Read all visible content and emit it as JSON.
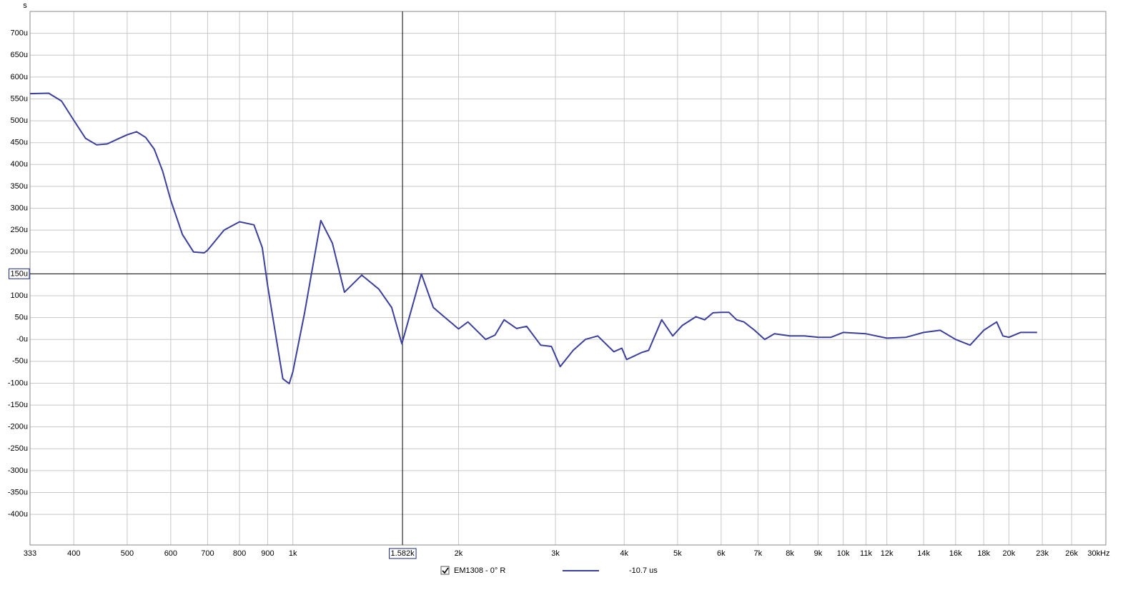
{
  "chart_data": {
    "type": "line",
    "y_axis_unit": "s",
    "x_scale": "log",
    "grid": true,
    "xlim": [
      333,
      30000
    ],
    "ylim": [
      -470,
      750
    ],
    "xticks": [
      333,
      400,
      500,
      600,
      700,
      800,
      900,
      {
        "value": 1000,
        "label": "1k"
      },
      {
        "value": 2000,
        "label": "2k"
      },
      {
        "value": 3000,
        "label": "3k"
      },
      {
        "value": 4000,
        "label": "4k"
      },
      {
        "value": 5000,
        "label": "5k"
      },
      {
        "value": 6000,
        "label": "6k"
      },
      {
        "value": 7000,
        "label": "7k"
      },
      {
        "value": 8000,
        "label": "8k"
      },
      {
        "value": 9000,
        "label": "9k"
      },
      {
        "value": 10000,
        "label": "10k"
      },
      {
        "value": 11000,
        "label": "11k"
      },
      {
        "value": 12000,
        "label": "12k"
      },
      {
        "value": 14000,
        "label": "14k"
      },
      {
        "value": 16000,
        "label": "16k"
      },
      {
        "value": 18000,
        "label": "18k"
      },
      {
        "value": 20000,
        "label": "20k"
      },
      {
        "value": 23000,
        "label": "23k"
      },
      {
        "value": 26000,
        "label": "26k"
      },
      {
        "value": 30000,
        "label": "30kHz"
      }
    ],
    "yticks": [
      {
        "value": 700,
        "label": "700u"
      },
      {
        "value": 650,
        "label": "650u"
      },
      {
        "value": 600,
        "label": "600u"
      },
      {
        "value": 550,
        "label": "550u"
      },
      {
        "value": 500,
        "label": "500u"
      },
      {
        "value": 450,
        "label": "450u"
      },
      {
        "value": 400,
        "label": "400u"
      },
      {
        "value": 350,
        "label": "350u"
      },
      {
        "value": 300,
        "label": "300u"
      },
      {
        "value": 250,
        "label": "250u"
      },
      {
        "value": 200,
        "label": "200u"
      },
      {
        "value": 100,
        "label": "100u"
      },
      {
        "value": 50,
        "label": "50u"
      },
      {
        "value": 0,
        "label": "-0u"
      },
      {
        "value": -50,
        "label": "-50u"
      },
      {
        "value": -100,
        "label": "-100u"
      },
      {
        "value": -150,
        "label": "-150u"
      },
      {
        "value": -200,
        "label": "-200u"
      },
      {
        "value": -250,
        "label": "-250u"
      },
      {
        "value": -300,
        "label": "-300u"
      },
      {
        "value": -350,
        "label": "-350u"
      },
      {
        "value": -400,
        "label": "-400u"
      }
    ],
    "cursor": {
      "x": {
        "value": 1582,
        "label": "1.582k"
      },
      "y": {
        "value": 150,
        "label": "150u"
      }
    },
    "x": [
      333,
      360,
      380,
      400,
      420,
      440,
      460,
      480,
      500,
      520,
      540,
      560,
      580,
      600,
      630,
      660,
      690,
      700,
      750,
      800,
      850,
      880,
      900,
      959,
      985,
      1000,
      1050,
      1124,
      1180,
      1241,
      1334,
      1433,
      1512,
      1578,
      1712,
      1800,
      1870,
      2000,
      2080,
      2240,
      2330,
      2420,
      2550,
      2660,
      2820,
      2950,
      3060,
      3230,
      3400,
      3580,
      3830,
      3960,
      4040,
      4300,
      4430,
      4680,
      4900,
      5100,
      5400,
      5600,
      5800,
      6000,
      6200,
      6400,
      6600,
      6900,
      7200,
      7500,
      8000,
      8500,
      9000,
      9500,
      10000,
      11000,
      12000,
      13000,
      14000,
      15000,
      16000,
      17000,
      18000,
      19000,
      19500,
      20000,
      21000,
      22500
    ],
    "series": [
      {
        "name": "EM1308 - 0° R",
        "color": "#3b3f9e",
        "value_text": "-10.7 us",
        "values": [
          562,
          563,
          545,
          501,
          460,
          445,
          447,
          458,
          468,
          475,
          462,
          435,
          385,
          318,
          240,
          200,
          198,
          204,
          250,
          269,
          262,
          210,
          122,
          -90,
          -101,
          -74,
          60,
          272,
          220,
          108,
          147,
          115,
          73,
          -10,
          150,
          73,
          55,
          24,
          40,
          0,
          10,
          45,
          25,
          30,
          -13,
          -16,
          -62,
          -25,
          0,
          8,
          -28,
          -20,
          -46,
          -30,
          -25,
          45,
          8,
          32,
          52,
          45,
          61,
          62,
          62,
          45,
          40,
          21,
          0,
          13,
          8,
          8,
          5,
          5,
          16,
          13,
          3,
          5,
          16,
          21,
          0,
          -13,
          21,
          40,
          8,
          5,
          16,
          16
        ]
      }
    ]
  }
}
